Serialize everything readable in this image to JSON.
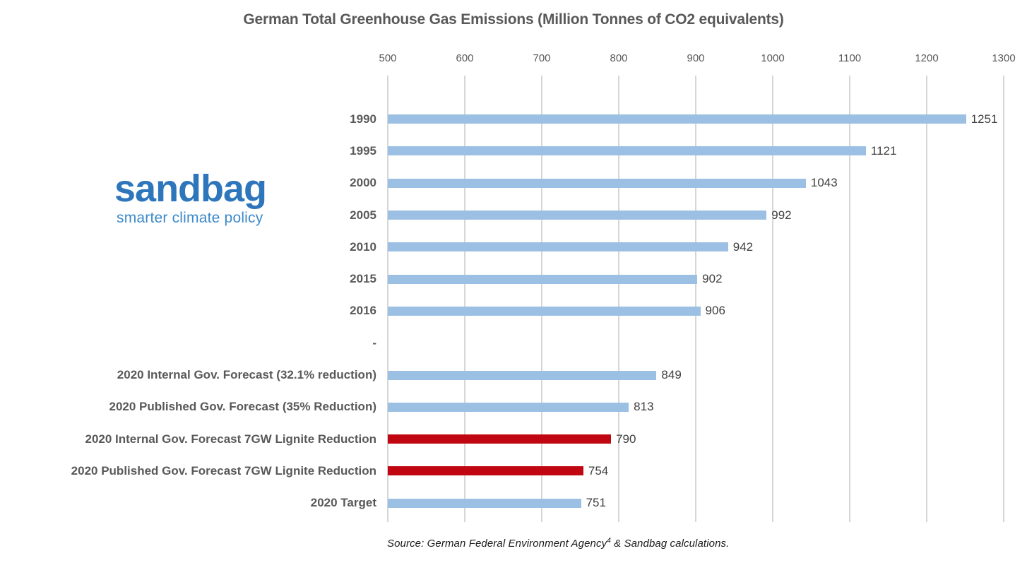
{
  "title": "German Total Greenhouse Gas Emissions (Million Tonnes of CO2 equivalents)",
  "logo": {
    "name": "sandbag",
    "tagline": "smarter climate policy",
    "name_color": "#2e76bc",
    "tagline_color": "#3d89c9"
  },
  "source": {
    "prefix": "Source: German Federal Environment Agency",
    "superscript": "4",
    "suffix": " & Sandbag calculations."
  },
  "chart_data": {
    "type": "bar",
    "orientation": "horizontal",
    "title": "German Total Greenhouse Gas Emissions (Million Tonnes of CO2 equivalents)",
    "xlabel": "",
    "ylabel": "",
    "axis": {
      "position": "top",
      "min": 500,
      "max": 1300,
      "ticks": [
        500,
        600,
        700,
        800,
        900,
        1000,
        1100,
        1200,
        1300
      ]
    },
    "grid": true,
    "gridline_color": "#d6d6d6",
    "legend": "none",
    "colors": {
      "default_bar": "#9bc0e4",
      "highlight_bar": "#c00711",
      "category_label": "#595959",
      "value_label": "#3f3f3f",
      "tick_label": "#595959",
      "title": "#595959"
    },
    "categories": [
      "1990",
      "1995",
      "2000",
      "2005",
      "2010",
      "2015",
      "2016",
      "-",
      "2020 Internal Gov. Forecast (32.1% reduction)",
      "2020 Published Gov. Forecast (35% Reduction)",
      "2020 Internal Gov. Forecast 7GW Lignite Reduction",
      "2020 Published Gov. Forecast 7GW Lignite Reduction",
      "2020 Target"
    ],
    "values": [
      1251,
      1121,
      1043,
      992,
      942,
      902,
      906,
      null,
      849,
      813,
      790,
      754,
      751
    ],
    "bar_colors": [
      "#9bc0e4",
      "#9bc0e4",
      "#9bc0e4",
      "#9bc0e4",
      "#9bc0e4",
      "#9bc0e4",
      "#9bc0e4",
      null,
      "#9bc0e4",
      "#9bc0e4",
      "#c00711",
      "#c00711",
      "#9bc0e4"
    ]
  }
}
